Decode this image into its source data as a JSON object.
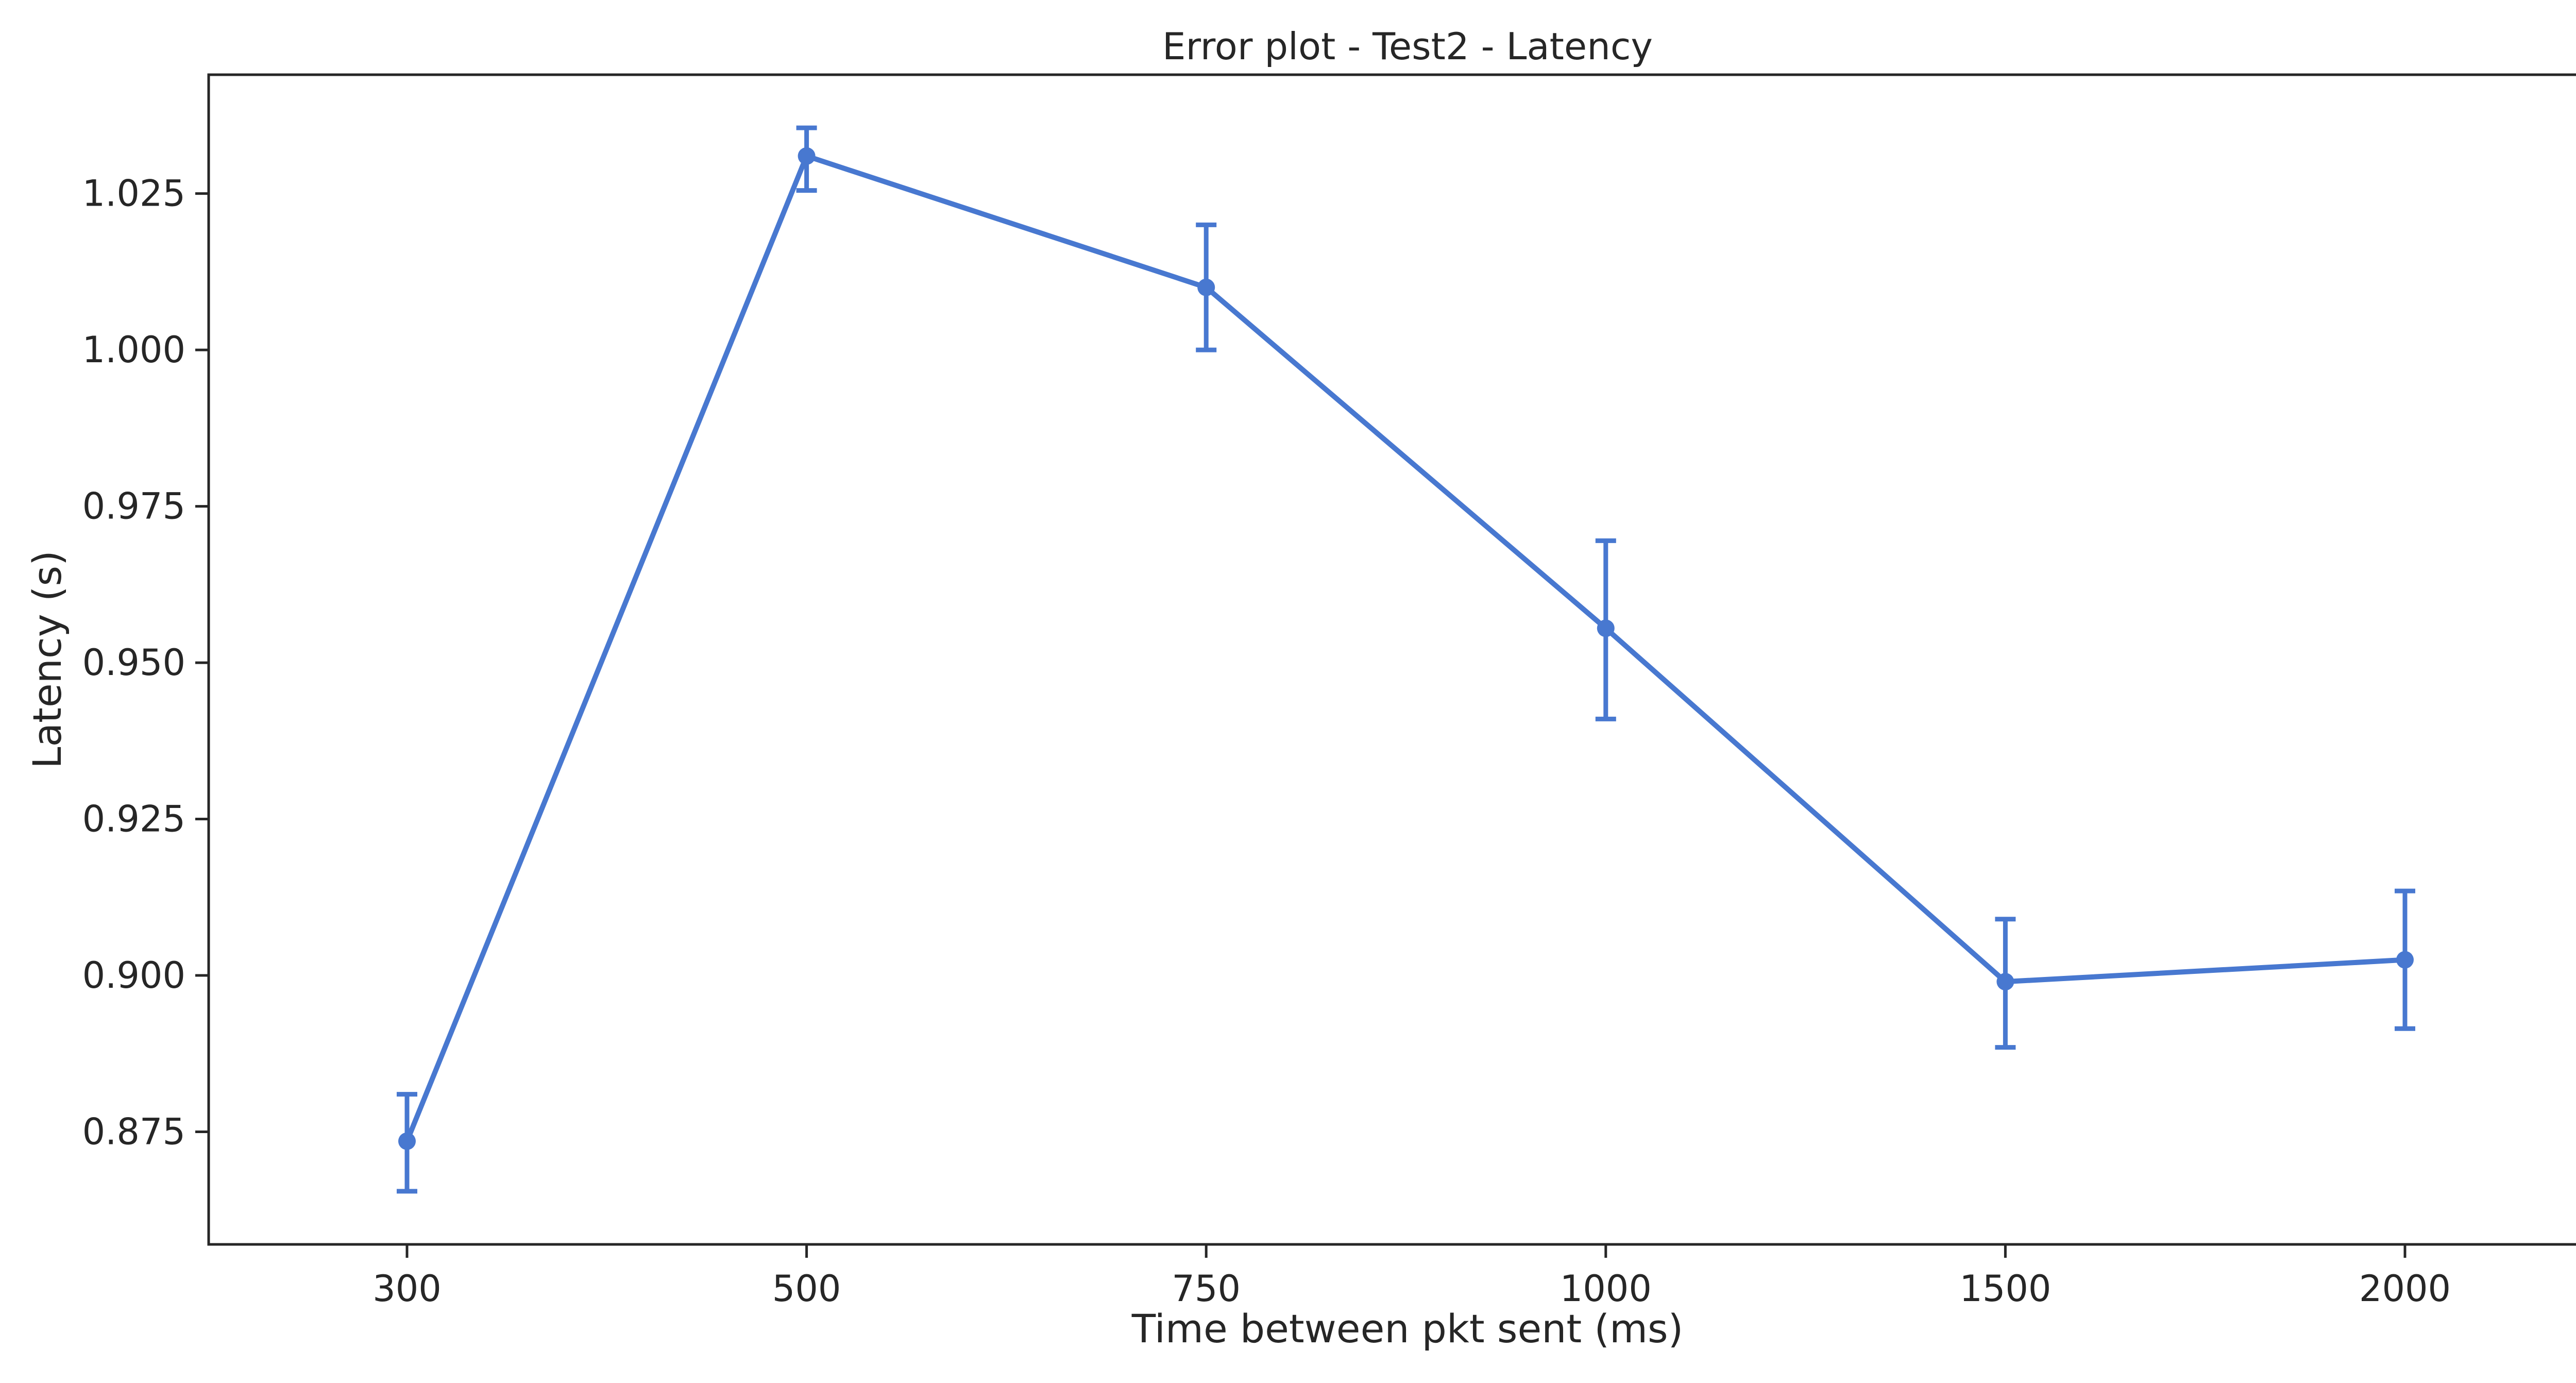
{
  "chart_data": {
    "type": "line",
    "title": "Error plot - Test2 - Latency",
    "xlabel": "Time between pkt sent (ms)",
    "ylabel": "Latency (s)",
    "categories": [
      "300",
      "500",
      "750",
      "1000",
      "1500",
      "2000"
    ],
    "series": [
      {
        "values": [
          0.8735,
          1.031,
          1.01,
          0.9555,
          0.899,
          0.9025
        ],
        "error_lower": [
          0.8655,
          1.0255,
          1.0,
          0.941,
          0.8885,
          0.8915
        ],
        "error_upper": [
          0.881,
          1.0355,
          1.02,
          0.9695,
          0.909,
          0.9135
        ]
      }
    ],
    "ylim": [
      0.857,
      1.044
    ],
    "yticks": [
      "0.875",
      "0.900",
      "0.925",
      "0.950",
      "0.975",
      "1.000",
      "1.025"
    ],
    "grid": false,
    "line_color": "#4878d0"
  }
}
